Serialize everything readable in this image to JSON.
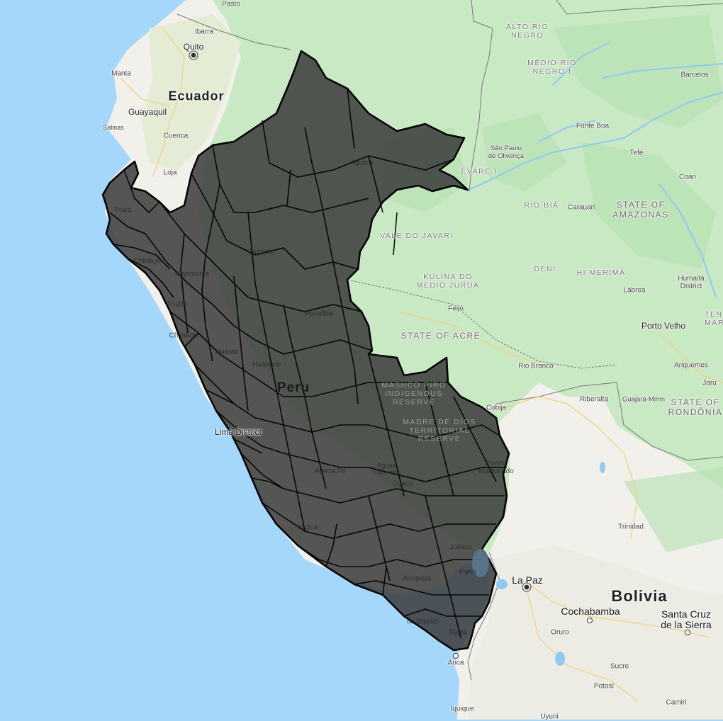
{
  "map": {
    "colors": {
      "ocean": "#a5d7fb",
      "land": "#f1f0ea",
      "forest": "#c9e8c4",
      "forest_dark": "#b6dfb0",
      "river": "#9fd0f5",
      "road": "#f5d68a",
      "peru_fill": "#3a3a3a",
      "peru_border": "#000000"
    },
    "highlighted_country": "Peru",
    "labels": {
      "countries": {
        "ecuador": "Ecuador",
        "bolivia": "Bolivia",
        "peru": "Peru"
      },
      "cities": {
        "pasto": "Pasto",
        "ibarra": "Ibarra",
        "quito": "Quito",
        "manta": "Manta",
        "guayaquil": "Guayaquil",
        "salinas": "Salinas",
        "cuenca": "Cuenca",
        "loja": "Loja",
        "piura": "Piura",
        "chiclayo": "Chiclayo",
        "cajamarca": "Cajamarca",
        "trujillo": "Trujillo",
        "chimbote": "Chimbote",
        "huaraz": "Huaraz",
        "huanuco": "Huánuco",
        "tarapoto": "Tarapoto",
        "iquitos": "Iquitos",
        "pucallpa": "Pucallpa",
        "lima": "Lima District",
        "ayacucho": "Ayacucho",
        "aguas": "Aguas\nCalientes",
        "cusco": "Cusco",
        "nazca": "Nazca",
        "arequipa": "Arequipa",
        "ilo": "Ilo District",
        "tacna": "Tacna",
        "juliaca": "Juliaca",
        "puno": "Puno",
        "maldonado": "Puerto\nMaldonado",
        "arica": "Arica",
        "iquique": "Iquique",
        "lapaz": "La Paz",
        "cochabamba": "Cochabamba",
        "santacruz": "Santa Cruz\nde la Sierra",
        "oruro": "Oruro",
        "sucre": "Sucre",
        "potosi": "Potosí",
        "camiri": "Camiri",
        "uyuni": "Uyuni",
        "trinidad": "Trinidad",
        "riberalta": "Riberalta",
        "guajara": "Guajará-Mirim",
        "riobranco": "Rio Branco",
        "cobija": "Cobija",
        "portovelho": "Porto Velho",
        "ariquemes": "Ariquemes",
        "jaru": "Jaru",
        "humaita": "Humaitá\nDistrict",
        "labrea": "Lábrea",
        "feijo": "Feijó",
        "barcelos": "Barcelos",
        "fonteboa": "Fonte Boa",
        "tefe": "Tefé",
        "coari": "Coari",
        "saopaulo": "São Paulo\nde Olivença",
        "carauari": "Carauari"
      },
      "regions": {
        "alto_rio_negro": "ALTO RIO\nNEGRO",
        "medio_rio_negro": "MÉDIO RIO\nNEGRO I",
        "evare": "ÉVARE I",
        "rio_bia": "RIO BIÁ",
        "state_amazonas": "STATE OF\nAMAZONAS",
        "vale_javari": "VALE DO JAVARI",
        "deni": "DENI",
        "hi_merima": "HI MERIMÃ",
        "kulina": "KULINA DO\nMEDIO JURUA",
        "state_acre": "STATE OF ACRE",
        "mashco": "MASHCO PIRO\nINDIGENOUS\nRESERVE",
        "madre": "MADRE DE DIOS\nTERRITORIAL\nRESERVE",
        "rondonia": "STATE OF\nRONDÔNIA",
        "tena": "TEN\nMAR"
      }
    }
  }
}
